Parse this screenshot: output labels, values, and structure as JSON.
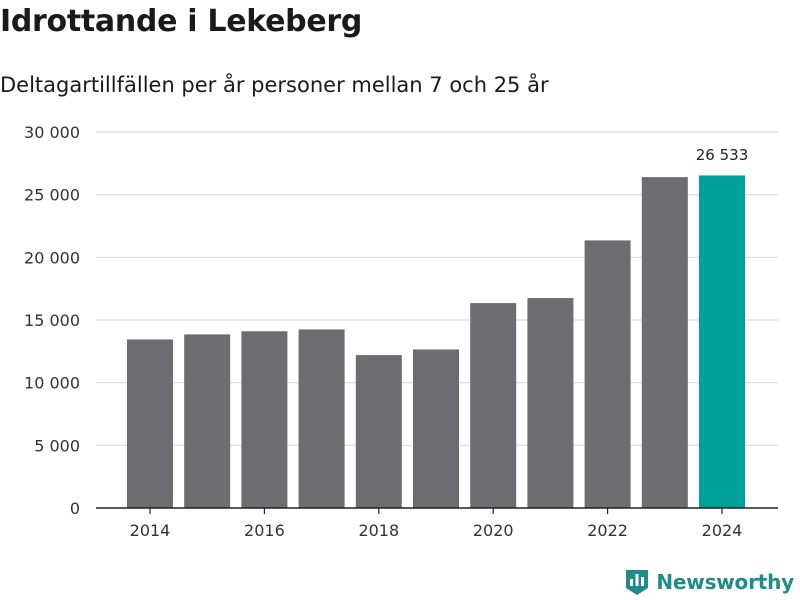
{
  "header": {
    "title": "Idrottande i Lekeberg",
    "subtitle": "Deltagartillfällen per år personer mellan 7 och 25 år"
  },
  "chart_data": {
    "type": "bar",
    "title": "Idrottande i Lekeberg",
    "subtitle": "Deltagartillfällen per år personer mellan 7 och 25 år",
    "xlabel": "",
    "ylabel": "",
    "categories": [
      "2014",
      "2015",
      "2016",
      "2017",
      "2018",
      "2019",
      "2020",
      "2021",
      "2022",
      "2023",
      "2024"
    ],
    "values": [
      13450,
      13850,
      14100,
      14250,
      12200,
      12650,
      16350,
      16750,
      21350,
      26400,
      26533
    ],
    "ylim": [
      0,
      30000
    ],
    "yticks": [
      0,
      5000,
      10000,
      15000,
      20000,
      25000,
      30000
    ],
    "ytick_labels": [
      "0",
      "5 000",
      "10 000",
      "15 000",
      "20 000",
      "25 000",
      "30 000"
    ],
    "xtick_labels": [
      "2014",
      "2016",
      "2018",
      "2020",
      "2022",
      "2024"
    ],
    "highlight_index": 10,
    "highlight_label": "26 533",
    "grid": true,
    "colors": {
      "bar": "#6d6c71",
      "highlight": "#00a19a",
      "grid": "#dcdcdc",
      "axis": "#222222"
    }
  },
  "footer": {
    "brand": "Newsworthy",
    "brand_color": "#1f8c8a",
    "brand_icon": "bar-chart-badge-icon"
  }
}
